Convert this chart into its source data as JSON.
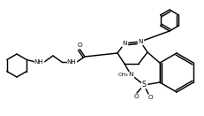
{
  "bg_color": "#ffffff",
  "line_color": "#000000",
  "lw": 1.05,
  "figsize": [
    2.31,
    1.31
  ],
  "dpi": 100
}
